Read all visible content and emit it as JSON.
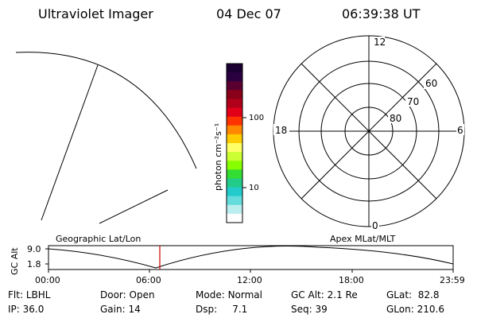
{
  "header": {
    "title": "Ultraviolet Imager",
    "date": "04 Dec 07",
    "time": "06:39:38 UT"
  },
  "colorbar": {
    "unit_label": "photon cm⁻²s⁻¹",
    "ticks": [
      "100",
      "10"
    ],
    "colors": [
      "#1a0033",
      "#2a0040",
      "#5a0030",
      "#8a0018",
      "#b0001a",
      "#e0001a",
      "#ff3300",
      "#ff8800",
      "#ffcc00",
      "#ffff66",
      "#ccff33",
      "#88ff00",
      "#33dd33",
      "#22cc88",
      "#22cccc",
      "#66dddd",
      "#bbeeee",
      "#ffffff"
    ]
  },
  "polar_grid": {
    "mlt_labels": [
      "12",
      "18",
      "6",
      "0"
    ],
    "lat_labels": [
      "60",
      "70",
      "80"
    ]
  },
  "timeline": {
    "left_title": "Geographic Lat/Lon",
    "right_title": "Apex MLat/MLT",
    "axis_label": "GC Alt",
    "y_ticks": [
      "9.0",
      "1.8"
    ],
    "x_ticks": [
      "00:00",
      "06:00",
      "12:00",
      "18:00",
      "23:59"
    ],
    "current_time_color": "#cc0000"
  },
  "footer": {
    "row1": [
      {
        "label": "Flt:",
        "value": "LBHL"
      },
      {
        "label": "Door:",
        "value": "Open"
      },
      {
        "label": "Mode:",
        "value": "Normal"
      },
      {
        "label": "GC Alt:",
        "value": "2.1 Re"
      },
      {
        "label": "GLat:",
        "value": "82.8"
      }
    ],
    "row2": [
      {
        "label": "IP:",
        "value": "36.0"
      },
      {
        "label": "Gain:",
        "value": "14"
      },
      {
        "label": "Dsp:",
        "value": "7.1"
      },
      {
        "label": "Seq:",
        "value": "39"
      },
      {
        "label": "GLon:",
        "value": "210.6"
      }
    ]
  }
}
